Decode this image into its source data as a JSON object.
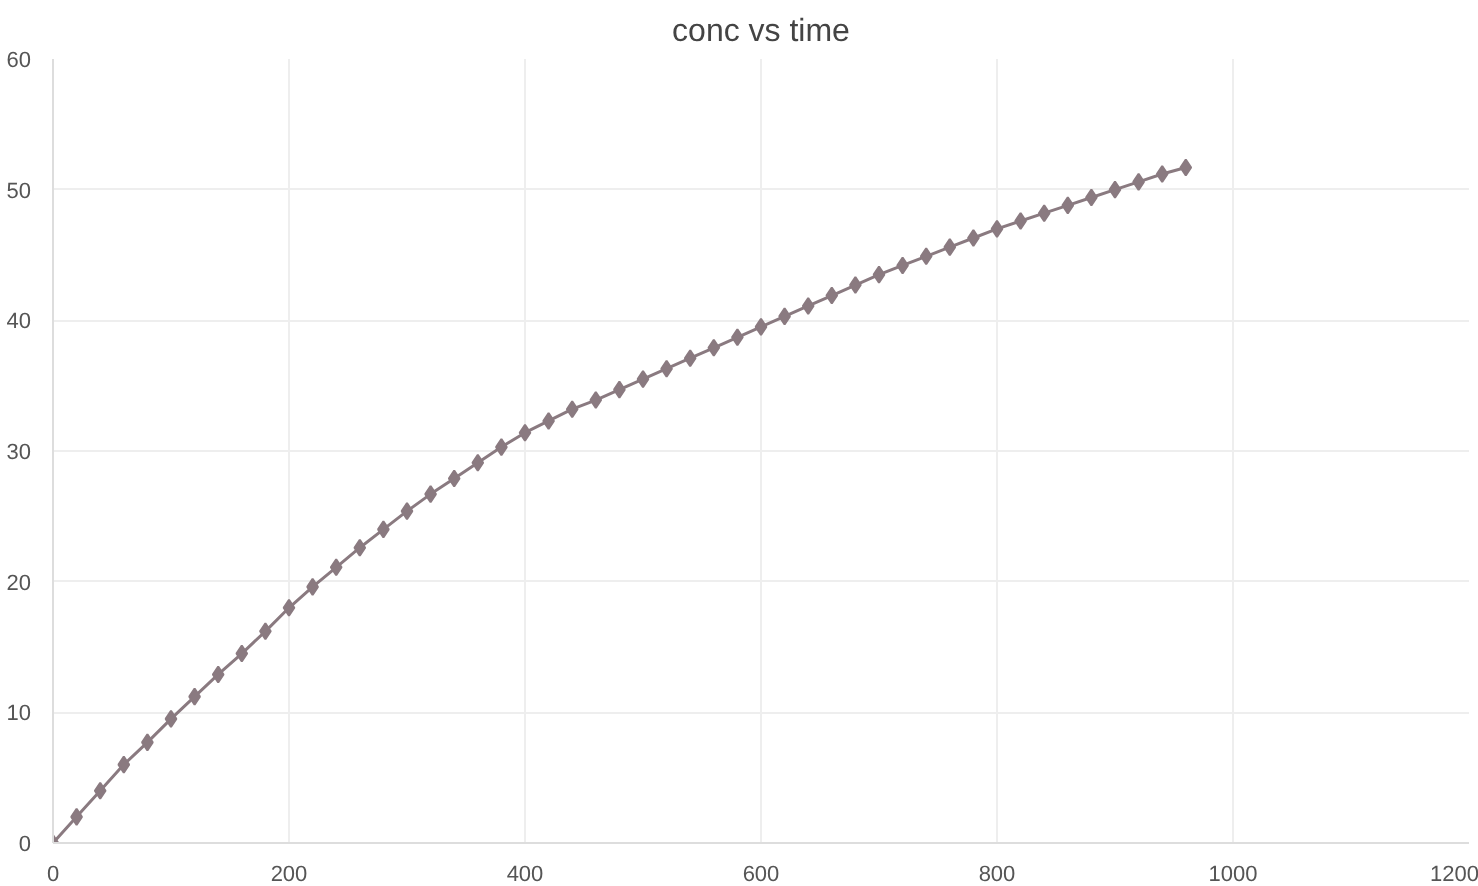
{
  "chart_data": {
    "type": "line",
    "title": "conc vs time",
    "x": [
      0,
      20,
      40,
      60,
      80,
      100,
      120,
      140,
      160,
      180,
      200,
      220,
      240,
      260,
      280,
      300,
      320,
      340,
      360,
      380,
      400,
      420,
      440,
      460,
      480,
      500,
      520,
      540,
      560,
      580,
      600,
      620,
      640,
      660,
      680,
      700,
      720,
      740,
      760,
      780,
      800,
      820,
      840,
      860,
      880,
      900,
      920,
      940,
      960
    ],
    "series": [
      {
        "color": "#8a7a80",
        "values": [
          0,
          2,
          4,
          6,
          7.7,
          9.5,
          11.2,
          12.9,
          14.5,
          16.2,
          18.0,
          19.6,
          21.1,
          22.6,
          24.0,
          25.4,
          26.7,
          27.9,
          29.1,
          30.3,
          31.4,
          32.3,
          33.2,
          33.9,
          34.7,
          35.5,
          36.3,
          37.1,
          37.9,
          38.7,
          39.5,
          40.3,
          41.1,
          41.9,
          42.7,
          43.5,
          44.2,
          44.9,
          45.6,
          46.3,
          47.0,
          47.6,
          48.2,
          48.8,
          49.4,
          50.0,
          50.6,
          51.2,
          51.7
        ]
      }
    ],
    "xlim": [
      0,
      1200
    ],
    "xticks": [
      0,
      200,
      400,
      600,
      800,
      1000,
      1200
    ],
    "ylim": [
      0,
      60
    ],
    "yticks": [
      0,
      10,
      20,
      30,
      40,
      50,
      60
    ],
    "grid": true,
    "marker": "diamond",
    "line_style": "solid"
  }
}
